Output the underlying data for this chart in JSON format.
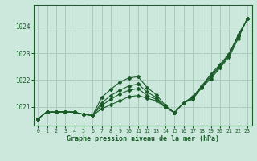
{
  "xlabel": "Graphe pression niveau de la mer (hPa)",
  "ylabel": "",
  "background_color": "#cce8dd",
  "grid_color": "#aaccbb",
  "line_color": "#1a5c28",
  "xlim": [
    -0.5,
    23.5
  ],
  "ylim": [
    1020.3,
    1024.8
  ],
  "yticks": [
    1021,
    1022,
    1023,
    1024
  ],
  "xticks": [
    0,
    1,
    2,
    3,
    4,
    5,
    6,
    7,
    8,
    9,
    10,
    11,
    12,
    13,
    14,
    15,
    16,
    17,
    18,
    19,
    20,
    21,
    22,
    23
  ],
  "series": [
    [
      1020.55,
      1020.82,
      1020.8,
      1020.82,
      1020.8,
      1020.72,
      1020.68,
      1020.92,
      1021.08,
      1021.22,
      1021.38,
      1021.42,
      1021.32,
      1021.22,
      1020.98,
      1020.78,
      1021.15,
      1021.28,
      1021.72,
      1022.05,
      1022.45,
      1022.85,
      1023.55,
      1024.28
    ],
    [
      1020.55,
      1020.82,
      1020.8,
      1020.82,
      1020.8,
      1020.72,
      1020.68,
      1021.05,
      1021.28,
      1021.48,
      1021.62,
      1021.68,
      1021.42,
      1021.28,
      1020.98,
      1020.78,
      1021.15,
      1021.32,
      1021.72,
      1022.12,
      1022.48,
      1022.92,
      1023.62,
      1024.28
    ],
    [
      1020.55,
      1020.82,
      1020.8,
      1020.82,
      1020.8,
      1020.72,
      1020.68,
      1021.15,
      1021.42,
      1021.62,
      1021.78,
      1021.85,
      1021.55,
      1021.35,
      1021.0,
      1020.78,
      1021.15,
      1021.35,
      1021.75,
      1022.18,
      1022.52,
      1022.95,
      1023.65,
      1024.28
    ],
    [
      1020.55,
      1020.82,
      1020.8,
      1020.82,
      1020.8,
      1020.72,
      1020.68,
      1021.35,
      1021.65,
      1021.92,
      1022.08,
      1022.12,
      1021.72,
      1021.45,
      1021.05,
      1020.78,
      1021.15,
      1021.38,
      1021.78,
      1022.22,
      1022.58,
      1022.98,
      1023.68,
      1024.28
    ]
  ]
}
